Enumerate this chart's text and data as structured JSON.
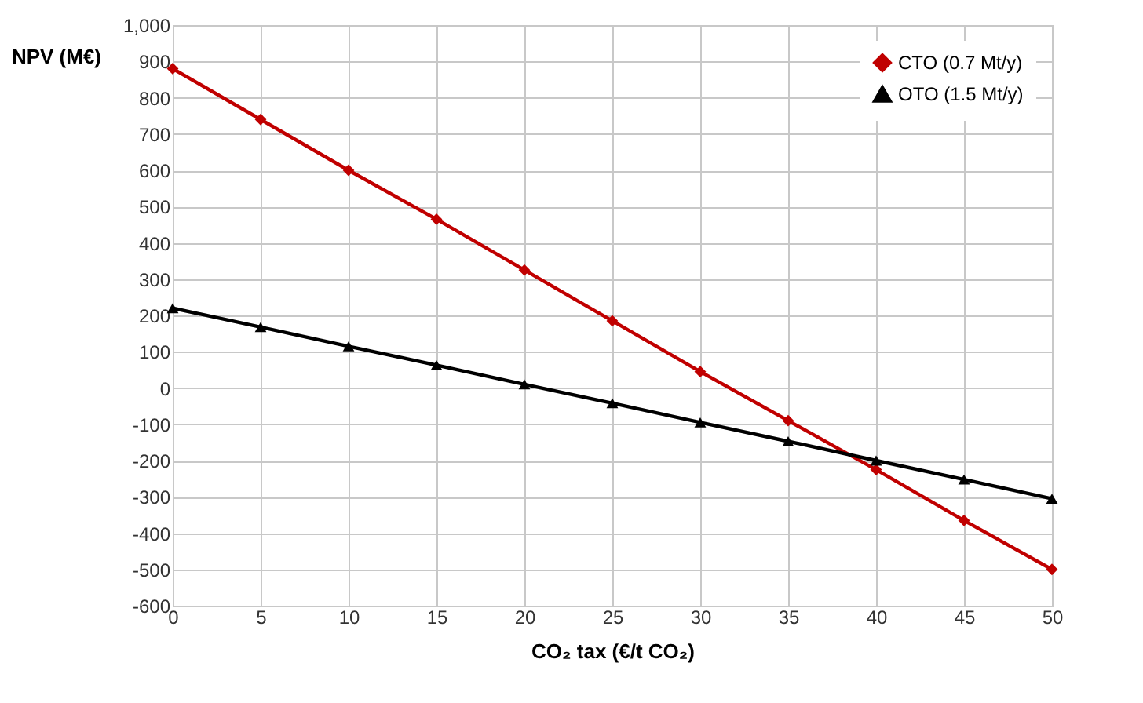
{
  "chart_data": {
    "type": "line",
    "xlabel": "CO₂ tax (€/t CO₂)",
    "ylabel": "NPV (M€)",
    "x": [
      0,
      5,
      10,
      15,
      20,
      25,
      30,
      35,
      40,
      45,
      50
    ],
    "series": [
      {
        "name": "CTO (0.7 Mt/y)",
        "color": "#c00000",
        "marker": "diamond",
        "values": [
          880,
          740,
          600,
          465,
          325,
          185,
          45,
          -90,
          -225,
          -365,
          -500
        ]
      },
      {
        "name": "OTO (1.5 Mt/y)",
        "color": "#000000",
        "marker": "triangle",
        "values": [
          220,
          168,
          115,
          63,
          10,
          -42,
          -95,
          -147,
          -200,
          -252,
          -305
        ]
      }
    ],
    "xlim": [
      0,
      50
    ],
    "xticks": [
      0,
      5,
      10,
      15,
      20,
      25,
      30,
      35,
      40,
      45,
      50
    ],
    "ylim": [
      -600,
      1000
    ],
    "yticks": [
      -600,
      -500,
      -400,
      -300,
      -200,
      -100,
      0,
      100,
      200,
      300,
      400,
      500,
      600,
      700,
      800,
      900,
      {
        "value": 1000,
        "label": "1,000"
      }
    ],
    "grid": true,
    "legend": "top right",
    "line_style": "solid"
  }
}
